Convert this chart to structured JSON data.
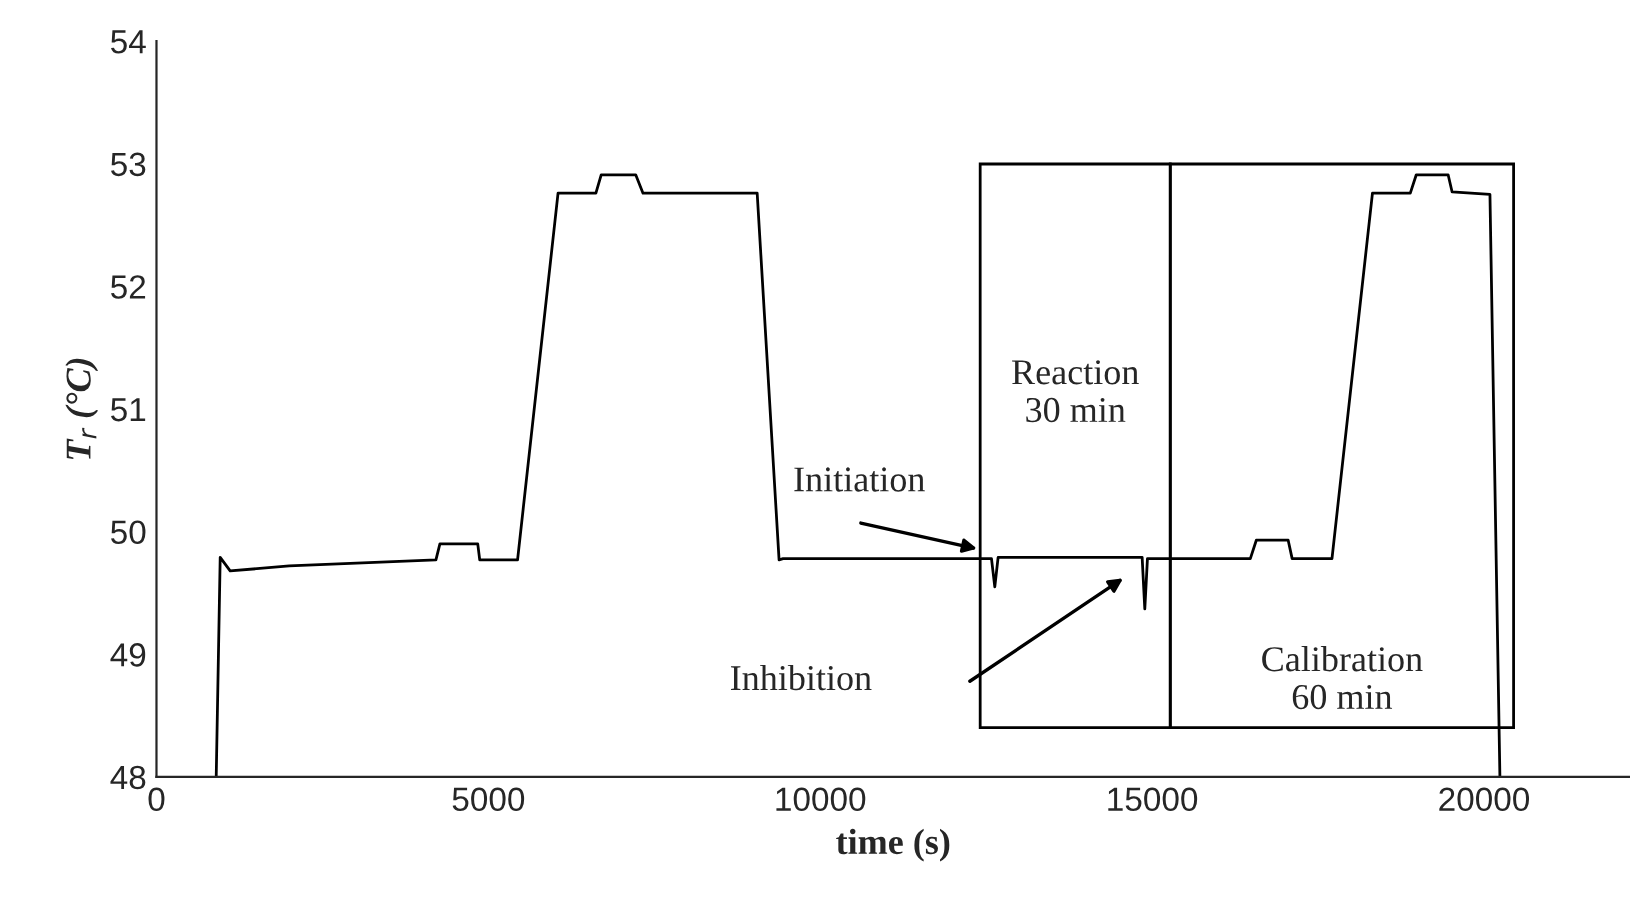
{
  "chart_data": {
    "type": "line",
    "xlabel": "time (s)",
    "ylabel": "T$_{r}$ (°C)",
    "x": [
      900,
      960,
      1110,
      2000,
      4210,
      4270,
      4840,
      4870,
      5440,
      6050,
      6620,
      6700,
      7220,
      7330,
      9050,
      9380,
      9440,
      12580,
      12630,
      12680,
      14850,
      14890,
      14930,
      16480,
      16570,
      17050,
      17110,
      17710,
      18320,
      18890,
      18980,
      19460,
      19520,
      20090,
      20240
    ],
    "series": [
      {
        "color": "#000000",
        "values": [
          48,
          49.79,
          49.68,
          49.72,
          49.77,
          49.9,
          49.9,
          49.77,
          49.77,
          52.76,
          52.76,
          52.91,
          52.91,
          52.76,
          52.76,
          49.77,
          49.78,
          49.78,
          49.55,
          49.79,
          49.79,
          49.37,
          49.78,
          49.78,
          49.93,
          49.93,
          49.78,
          49.78,
          52.76,
          52.76,
          52.91,
          52.91,
          52.77,
          52.75,
          48
        ]
      }
    ],
    "xlim": [
      0,
      22200
    ],
    "ylim": [
      48,
      54
    ],
    "xticks": [
      0,
      5000,
      10000,
      15000,
      20000
    ],
    "yticks": [
      48,
      49,
      50,
      51,
      52,
      53,
      54
    ],
    "grid": false,
    "legend": false,
    "marker": "none",
    "line_style": "solid",
    "annotations": [
      "Initiation",
      "Inhibition",
      "Reaction\n30 min",
      "Calibration\n60 min"
    ]
  }
}
